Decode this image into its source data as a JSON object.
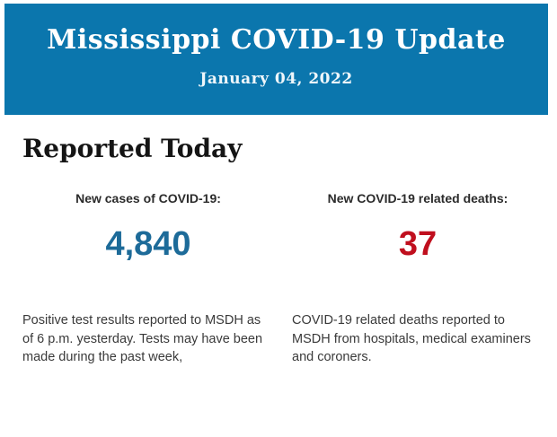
{
  "colors": {
    "banner_bg": "#0b76ad",
    "banner_text": "#ffffff",
    "cases_value": "#1d6b99",
    "deaths_value": "#c00f1e"
  },
  "banner": {
    "title": "Mississippi COVID-19 Update",
    "date": "January 04, 2022"
  },
  "report": {
    "heading": "Reported Today",
    "cases": {
      "label": "New cases of COVID-19:",
      "value": "4,840",
      "description": "Positive test results reported to MSDH as of 6 p.m. yesterday. Tests may have been made during the past week,"
    },
    "deaths": {
      "label": "New COVID-19 related deaths:",
      "value": "37",
      "description": "COVID-19 related deaths reported to MSDH from hospitals, medical examiners and coroners."
    }
  }
}
